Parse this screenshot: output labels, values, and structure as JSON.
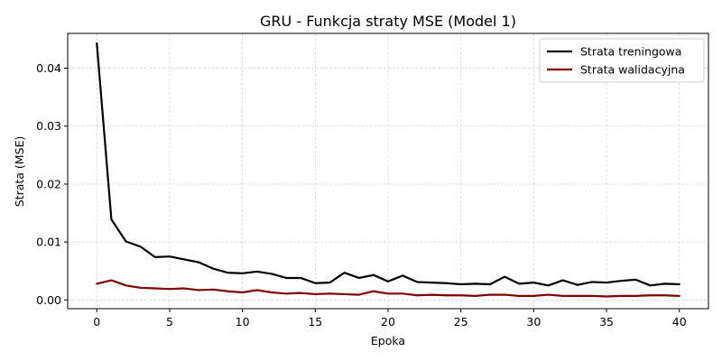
{
  "chart_data": {
    "type": "line",
    "title": "GRU - Funkcja straty MSE (Model 1)",
    "xlabel": "Epoka",
    "ylabel": "Strata (MSE)",
    "xlim": [
      -2,
      42
    ],
    "ylim": [
      -0.0015,
      0.046
    ],
    "xticks": [
      0,
      5,
      10,
      15,
      20,
      25,
      30,
      35,
      40
    ],
    "xtick_labels": [
      "0",
      "5",
      "10",
      "15",
      "20",
      "25",
      "30",
      "35",
      "40"
    ],
    "yticks": [
      0.0,
      0.01,
      0.02,
      0.03,
      0.04
    ],
    "ytick_labels": [
      "0.00",
      "0.01",
      "0.02",
      "0.03",
      "0.04"
    ],
    "grid": true,
    "legend_position": "top-right",
    "x": [
      0,
      1,
      2,
      3,
      4,
      5,
      6,
      7,
      8,
      9,
      10,
      11,
      12,
      13,
      14,
      15,
      16,
      17,
      18,
      19,
      20,
      21,
      22,
      23,
      24,
      25,
      26,
      27,
      28,
      29,
      30,
      31,
      32,
      33,
      34,
      35,
      36,
      37,
      38,
      39,
      40
    ],
    "series": [
      {
        "name": "Strata treningowa",
        "color": "#000000",
        "values": [
          0.0443,
          0.0139,
          0.0101,
          0.0092,
          0.0074,
          0.0075,
          0.007,
          0.0065,
          0.0054,
          0.0047,
          0.0046,
          0.0049,
          0.0045,
          0.0038,
          0.0038,
          0.0029,
          0.003,
          0.0047,
          0.0038,
          0.0043,
          0.0032,
          0.0042,
          0.0031,
          0.003,
          0.0029,
          0.0027,
          0.0028,
          0.0027,
          0.004,
          0.0028,
          0.003,
          0.0025,
          0.0034,
          0.0026,
          0.0031,
          0.003,
          0.0033,
          0.0035,
          0.0025,
          0.0028,
          0.0027
        ]
      },
      {
        "name": "Strata walidacyjna",
        "color": "#800000",
        "values": [
          0.0028,
          0.0034,
          0.0025,
          0.0021,
          0.002,
          0.0019,
          0.002,
          0.0017,
          0.0018,
          0.0015,
          0.0013,
          0.0017,
          0.0013,
          0.0011,
          0.0012,
          0.001,
          0.0011,
          0.001,
          0.0009,
          0.0015,
          0.0011,
          0.0011,
          0.0008,
          0.0009,
          0.0008,
          0.0008,
          0.0007,
          0.0009,
          0.0009,
          0.0007,
          0.0007,
          0.0009,
          0.0007,
          0.0007,
          0.0007,
          0.0006,
          0.0007,
          0.0007,
          0.0008,
          0.0008,
          0.0007
        ]
      }
    ]
  }
}
